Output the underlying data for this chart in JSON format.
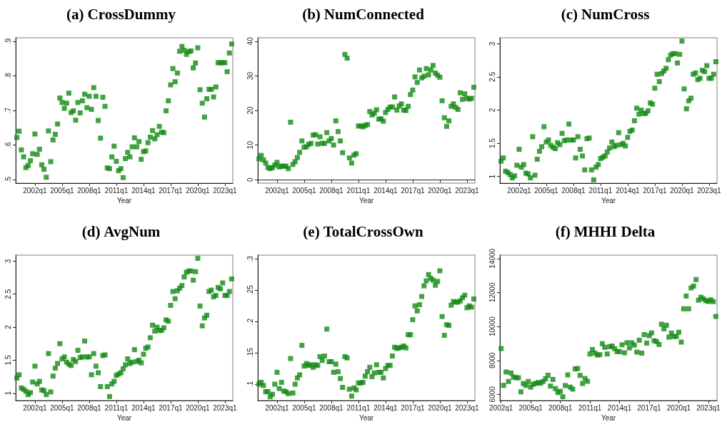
{
  "chart_data": [
    {
      "type": "scatter",
      "title": "(a) CrossDummy",
      "xlabel": "Year",
      "marker": "square",
      "categories": [
        null,
        null,
        null,
        null,
        null,
        null,
        null,
        null,
        "2002q1",
        null,
        null,
        null,
        null,
        null,
        null,
        null,
        null,
        null,
        null,
        null,
        "2005q1",
        null,
        null,
        null,
        null,
        null,
        null,
        null,
        null,
        null,
        null,
        null,
        "2008q1",
        null,
        null,
        null,
        null,
        null,
        null,
        null,
        null,
        null,
        null,
        null,
        "2011q1",
        null,
        null,
        null,
        null,
        null,
        null,
        null,
        null,
        null,
        null,
        null,
        "2014q1",
        null,
        null,
        null,
        null,
        null,
        null,
        null,
        null,
        null,
        null,
        null,
        "2017q1",
        null,
        null,
        null,
        null,
        null,
        null,
        null,
        null,
        null,
        null,
        null,
        "2020q1",
        null,
        null,
        null,
        null,
        null,
        null,
        null,
        null,
        null,
        null,
        null,
        "2023q1",
        null,
        null,
        null
      ],
      "series": [
        {
          "color": "#138a13",
          "values": [
            0.622,
            0.64,
            0.586,
            0.566,
            0.535,
            0.541,
            0.555,
            0.575,
            0.632,
            0.573,
            0.588,
            0.543,
            0.53,
            0.507,
            0.641,
            0.552,
            0.615,
            0.631,
            0.661,
            0.736,
            0.723,
            0.706,
            0.721,
            0.75,
            0.694,
            0.699,
            0.672,
            0.723,
            0.693,
            0.728,
            0.747,
            0.708,
            0.741,
            0.703,
            0.766,
            0.741,
            0.671,
            0.62,
            0.738,
            0.712,
            0.534,
            0.532,
            0.566,
            0.597,
            0.553,
            0.526,
            0.532,
            0.506,
            0.561,
            0.579,
            0.566,
            0.595,
            0.621,
            0.595,
            0.61,
            0.559,
            0.581,
            0.583,
            0.607,
            0.623,
            0.642,
            0.618,
            0.63,
            0.654,
            0.637,
            0.636,
            0.699,
            0.728,
            0.774,
            0.821,
            0.783,
            0.808,
            0.871,
            0.885,
            0.874,
            0.862,
            0.87,
            0.872,
            0.823,
            0.837,
            0.881,
            0.76,
            0.721,
            0.681,
            0.734,
            0.761,
            0.761,
            0.739,
            0.768,
            0.838,
            0.838,
            0.838,
            0.838,
            0.812,
            0.866,
            0.892
          ]
        }
      ],
      "ylim": [
        0.49,
        0.91
      ],
      "yticks": [
        {
          "value": 0.5,
          "label": ".5"
        },
        {
          "value": 0.6,
          "label": ".6"
        },
        {
          "value": 0.7,
          "label": ".7"
        },
        {
          "value": 0.8,
          "label": ".8"
        },
        {
          "value": 0.9,
          "label": ".9"
        }
      ]
    },
    {
      "type": "scatter",
      "title": "(b) NumConnected",
      "xlabel": "Year",
      "marker": "square",
      "categories": [
        null,
        null,
        null,
        null,
        null,
        null,
        null,
        null,
        "2002q1",
        null,
        null,
        null,
        null,
        null,
        null,
        null,
        null,
        null,
        null,
        null,
        "2005q1",
        null,
        null,
        null,
        null,
        null,
        null,
        null,
        null,
        null,
        null,
        null,
        "2008q1",
        null,
        null,
        null,
        null,
        null,
        null,
        null,
        null,
        null,
        null,
        null,
        "2011q1",
        null,
        null,
        null,
        null,
        null,
        null,
        null,
        null,
        null,
        null,
        null,
        "2014q1",
        null,
        null,
        null,
        null,
        null,
        null,
        null,
        null,
        null,
        null,
        null,
        "2017q1",
        null,
        null,
        null,
        null,
        null,
        null,
        null,
        null,
        null,
        null,
        null,
        "2020q1",
        null,
        null,
        null,
        null,
        null,
        null,
        null,
        null,
        null,
        null,
        null,
        "2023q1",
        null,
        null,
        null
      ],
      "series": [
        {
          "color": "#138a13",
          "values": [
            6.0,
            7.0,
            5.7,
            4.8,
            3.5,
            3.2,
            3.5,
            4.2,
            5.0,
            3.7,
            3.9,
            3.9,
            3.9,
            3.2,
            16.6,
            4.4,
            5.2,
            6.4,
            7.9,
            11.2,
            9.4,
            9.5,
            10.2,
            10.5,
            12.9,
            13.0,
            10.3,
            12.4,
            10.5,
            10.5,
            13.6,
            11.2,
            11.9,
            10.0,
            17.0,
            13.9,
            11.2,
            7.8,
            36.2,
            35.1,
            6.3,
            4.8,
            7.1,
            7.5,
            15.5,
            15.5,
            15.3,
            15.7,
            15.9,
            19.7,
            18.7,
            19.2,
            20.2,
            17.5,
            17.6,
            16.9,
            19.4,
            20.3,
            21.0,
            21.0,
            23.9,
            20.1,
            21.3,
            21.9,
            20.1,
            20.0,
            21.2,
            24.6,
            25.9,
            29.7,
            28.1,
            31.7,
            29.4,
            29.9,
            32.1,
            30.3,
            31.7,
            33.0,
            30.8,
            30.2,
            29.6,
            22.8,
            17.9,
            15.4,
            17.0,
            21.2,
            21.9,
            20.9,
            20.3,
            25.1,
            23.2,
            24.8,
            23.5,
            23.3,
            23.5,
            26.7
          ]
        }
      ],
      "ylim": [
        -1,
        41
      ],
      "yticks": [
        0,
        10,
        20,
        30,
        40
      ]
    },
    {
      "type": "scatter",
      "title": "(c) NumCross",
      "xlabel": "Year",
      "marker": "square",
      "categories": [
        null,
        null,
        null,
        null,
        null,
        null,
        null,
        null,
        "2002q1",
        null,
        null,
        null,
        null,
        null,
        null,
        null,
        null,
        null,
        null,
        null,
        "2005q1",
        null,
        null,
        null,
        null,
        null,
        null,
        null,
        null,
        null,
        null,
        null,
        "2008q1",
        null,
        null,
        null,
        null,
        null,
        null,
        null,
        null,
        null,
        null,
        null,
        "2011q1",
        null,
        null,
        null,
        null,
        null,
        null,
        null,
        null,
        null,
        null,
        null,
        "2014q1",
        null,
        null,
        null,
        null,
        null,
        null,
        null,
        null,
        null,
        null,
        null,
        "2017q1",
        null,
        null,
        null,
        null,
        null,
        null,
        null,
        null,
        null,
        null,
        null,
        "2020q1",
        null,
        null,
        null,
        null,
        null,
        null,
        null,
        null,
        null,
        null,
        null,
        "2023q1",
        null,
        null,
        null
      ],
      "series": [
        {
          "color": "#138a13",
          "values": [
            1.23,
            1.28,
            1.08,
            1.06,
            1.03,
            0.98,
            1.01,
            1.17,
            1.41,
            1.14,
            1.18,
            1.05,
            1.04,
            0.98,
            1.6,
            1.02,
            1.26,
            1.38,
            1.45,
            1.75,
            1.52,
            1.55,
            1.47,
            1.44,
            1.42,
            1.51,
            1.48,
            1.65,
            1.54,
            1.55,
            1.79,
            1.55,
            1.55,
            1.28,
            1.6,
            1.41,
            1.31,
            1.1,
            1.57,
            1.58,
            1.1,
            0.95,
            1.14,
            1.18,
            1.27,
            1.29,
            1.31,
            1.37,
            1.43,
            1.52,
            1.45,
            1.47,
            1.66,
            1.48,
            1.5,
            1.46,
            1.59,
            1.68,
            1.7,
            1.84,
            2.03,
            1.94,
            2,
            1.95,
            1.95,
            1.99,
            2.11,
            2.09,
            2.33,
            2.54,
            2.43,
            2.55,
            2.59,
            2.63,
            2.76,
            2.83,
            2.85,
            2.85,
            2.71,
            2.84,
            3.04,
            2.32,
            2.02,
            2.14,
            2.18,
            2.54,
            2.56,
            2.46,
            2.48,
            2.6,
            2.58,
            2.67,
            2.48,
            2.48,
            2.54,
            2.73
          ]
        }
      ],
      "ylim": [
        0.9,
        3.09
      ],
      "yticks": [
        1,
        1.5,
        2,
        2.5,
        3
      ]
    },
    {
      "type": "scatter",
      "title": "(d) AvgNum",
      "xlabel": "Year",
      "marker": "square",
      "categories": [
        null,
        null,
        null,
        null,
        null,
        null,
        null,
        null,
        "2002q1",
        null,
        null,
        null,
        null,
        null,
        null,
        null,
        null,
        null,
        null,
        null,
        "2005q1",
        null,
        null,
        null,
        null,
        null,
        null,
        null,
        null,
        null,
        null,
        null,
        "2008q1",
        null,
        null,
        null,
        null,
        null,
        null,
        null,
        null,
        null,
        null,
        null,
        "2011q1",
        null,
        null,
        null,
        null,
        null,
        null,
        null,
        null,
        null,
        null,
        null,
        "2014q1",
        null,
        null,
        null,
        null,
        null,
        null,
        null,
        null,
        null,
        null,
        null,
        "2017q1",
        null,
        null,
        null,
        null,
        null,
        null,
        null,
        null,
        null,
        null,
        null,
        "2020q1",
        null,
        null,
        null,
        null,
        null,
        null,
        null,
        null,
        null,
        null,
        null,
        "2023q1",
        null,
        null,
        null
      ],
      "series": [
        {
          "color": "#138a13",
          "values": [
            1.23,
            1.28,
            1.08,
            1.06,
            1.03,
            0.98,
            1.01,
            1.17,
            1.41,
            1.14,
            1.18,
            1.05,
            1.04,
            0.98,
            1.6,
            1.02,
            1.26,
            1.38,
            1.45,
            1.75,
            1.52,
            1.55,
            1.47,
            1.44,
            1.42,
            1.51,
            1.48,
            1.65,
            1.54,
            1.55,
            1.79,
            1.55,
            1.55,
            1.28,
            1.6,
            1.41,
            1.31,
            1.1,
            1.57,
            1.58,
            1.1,
            0.95,
            1.14,
            1.18,
            1.27,
            1.29,
            1.31,
            1.37,
            1.43,
            1.52,
            1.45,
            1.47,
            1.66,
            1.48,
            1.5,
            1.46,
            1.59,
            1.68,
            1.7,
            1.84,
            2.03,
            1.94,
            2,
            1.95,
            1.95,
            1.99,
            2.11,
            2.09,
            2.33,
            2.54,
            2.43,
            2.55,
            2.59,
            2.63,
            2.76,
            2.83,
            2.85,
            2.85,
            2.71,
            2.84,
            3.04,
            2.32,
            2.02,
            2.14,
            2.18,
            2.54,
            2.56,
            2.46,
            2.48,
            2.6,
            2.58,
            2.67,
            2.48,
            2.48,
            2.54,
            2.73
          ]
        }
      ],
      "ylim": [
        0.89,
        3.09
      ],
      "yticks": [
        1,
        1.5,
        2,
        2.5,
        3
      ]
    },
    {
      "type": "scatter",
      "title": "(e) TotalCrossOwn",
      "xlabel": "Year",
      "marker": "square",
      "categories": [
        null,
        null,
        null,
        null,
        null,
        null,
        null,
        null,
        "2002q1",
        null,
        null,
        null,
        null,
        null,
        null,
        null,
        null,
        null,
        null,
        null,
        "2005q1",
        null,
        null,
        null,
        null,
        null,
        null,
        null,
        null,
        null,
        null,
        null,
        "2008q1",
        null,
        null,
        null,
        null,
        null,
        null,
        null,
        null,
        null,
        null,
        null,
        "2011q1",
        null,
        null,
        null,
        null,
        null,
        null,
        null,
        null,
        null,
        null,
        null,
        "2014q1",
        null,
        null,
        null,
        null,
        null,
        null,
        null,
        null,
        null,
        null,
        null,
        "2017q1",
        null,
        null,
        null,
        null,
        null,
        null,
        null,
        null,
        null,
        null,
        null,
        "2020q1",
        null,
        null,
        null,
        null,
        null,
        null,
        null,
        null,
        null,
        null,
        null,
        "2023q1",
        null,
        null,
        null
      ],
      "series": [
        {
          "color": "#138a13",
          "values": [
            0.1,
            0.103,
            0.098,
            0.088,
            0.088,
            0.08,
            0.084,
            0.1,
            0.119,
            0.093,
            0.103,
            0.089,
            0.088,
            0.085,
            0.141,
            0.086,
            0.1,
            0.11,
            0.115,
            0.162,
            0.129,
            0.133,
            0.13,
            0.131,
            0.127,
            0.131,
            0.13,
            0.144,
            0.138,
            0.145,
            0.188,
            0.136,
            0.136,
            0.119,
            0.132,
            0.12,
            0.109,
            0.095,
            0.144,
            0.142,
            0.092,
            0.081,
            0.094,
            0.091,
            0.102,
            0.102,
            0.103,
            0.113,
            0.12,
            0.127,
            0.112,
            0.118,
            0.131,
            0.119,
            0.119,
            0.11,
            0.125,
            0.13,
            0.13,
            0.145,
            0.159,
            0.157,
            0.158,
            0.159,
            0.161,
            0.158,
            0.179,
            0.179,
            0.203,
            0.225,
            0.217,
            0.227,
            0.24,
            0.257,
            0.265,
            0.275,
            0.269,
            0.266,
            0.258,
            0.264,
            0.281,
            0.208,
            0.178,
            0.195,
            0.194,
            0.226,
            0.232,
            0.231,
            0.231,
            0.233,
            0.238,
            0.242,
            0.222,
            0.225,
            0.223,
            0.236
          ]
        }
      ],
      "ylim": [
        0.074,
        0.306
      ],
      "yticks": [
        {
          "value": 0.1,
          "label": ".1"
        },
        {
          "value": 0.15,
          "label": ".15"
        },
        {
          "value": 0.2,
          "label": ".2"
        },
        {
          "value": 0.25,
          "label": ".25"
        },
        {
          "value": 0.3,
          "label": ".3"
        }
      ]
    },
    {
      "type": "scatter",
      "title": "(f) MHHI Delta",
      "xlabel": "Year",
      "marker": "square",
      "categories": [
        "2002q1",
        null,
        null,
        null,
        null,
        null,
        null,
        null,
        null,
        null,
        null,
        null,
        "2005q1",
        null,
        null,
        null,
        null,
        null,
        null,
        null,
        null,
        null,
        null,
        null,
        "2008q1",
        null,
        null,
        null,
        null,
        null,
        null,
        null,
        null,
        null,
        null,
        null,
        "2011q1",
        null,
        null,
        null,
        null,
        null,
        null,
        null,
        null,
        null,
        null,
        null,
        "2014q1",
        null,
        null,
        null,
        null,
        null,
        null,
        null,
        null,
        null,
        null,
        null,
        "2017q1",
        null,
        null,
        null,
        null,
        null,
        null,
        null,
        null,
        null,
        null,
        null,
        "2020q1",
        null,
        null,
        null,
        null,
        null,
        null,
        null,
        null,
        null,
        null,
        null,
        "2023q1",
        null,
        null,
        null
      ],
      "series": [
        {
          "color": "#138a13",
          "values": [
            8700,
            6530,
            7320,
            6760,
            7260,
            7020,
            6980,
            6980,
            6150,
            6640,
            6530,
            6760,
            6430,
            6600,
            6640,
            6700,
            6660,
            6760,
            6920,
            7130,
            6490,
            6880,
            6340,
            6110,
            6180,
            5860,
            6520,
            7150,
            6430,
            6310,
            7500,
            7520,
            7120,
            6640,
            6940,
            6770,
            8380,
            8640,
            8430,
            8320,
            8340,
            8990,
            8770,
            8380,
            8810,
            8850,
            8690,
            8520,
            8520,
            8920,
            8450,
            9040,
            8740,
            9040,
            8900,
            8490,
            9190,
            8430,
            9520,
            9020,
            9460,
            9620,
            9160,
            9110,
            8940,
            10130,
            9860,
            10070,
            9370,
            9610,
            9410,
            9410,
            9660,
            9080,
            11040,
            11790,
            11040,
            12270,
            12380,
            12760,
            11550,
            11720,
            11620,
            11520,
            11470,
            11570,
            11460,
            10590
          ]
        }
      ],
      "ylim": [
        5640,
        14200
      ],
      "yticks": [
        6000,
        8000,
        10000,
        12000,
        14000
      ]
    }
  ]
}
